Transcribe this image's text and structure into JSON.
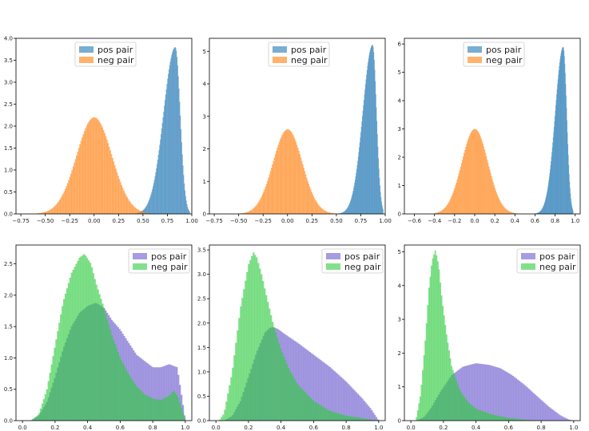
{
  "colors": {
    "pos_top": "#1f77b4",
    "neg_top": "#ff7f0e",
    "pos_bottom": "#6a5acd",
    "neg_bottom": "#2ecc40",
    "axis": "#000000"
  },
  "chart_data": [
    {
      "type": "histogram",
      "panel": "top-left",
      "xlim": [
        -0.8,
        1.0
      ],
      "ylim": [
        0,
        4.0
      ],
      "xticks": [
        -0.75,
        -0.5,
        -0.25,
        0.0,
        0.25,
        0.5,
        0.75,
        1.0
      ],
      "xtick_labels": [
        "−0.75",
        "−0.50",
        "−0.25",
        "0.00",
        "0.25",
        "0.50",
        "0.75",
        "1.00"
      ],
      "yticks": [
        0.0,
        0.5,
        1.0,
        1.5,
        2.0,
        2.5,
        3.0,
        3.5,
        4.0
      ],
      "ytick_labels": [
        "0.0",
        "0.5",
        "1.0",
        "1.5",
        "2.0",
        "2.5",
        "3.0",
        "3.5",
        "4.0"
      ],
      "legend": [
        "pos pair",
        "neg pair"
      ],
      "legend_position": "top-center",
      "series": [
        {
          "name": "pos pair",
          "color": "#1f77b4",
          "alpha": 0.6,
          "shape": "skew-left",
          "range": [
            0.3,
            0.98
          ],
          "peak_x": 0.83,
          "peak": 3.8,
          "sigma_left": 0.12,
          "sigma_right": 0.05
        },
        {
          "name": "neg pair",
          "color": "#ff7f0e",
          "alpha": 0.6,
          "shape": "gauss",
          "range": [
            -0.6,
            0.55
          ],
          "peak_x": 0.0,
          "peak": 2.2,
          "sigma": 0.18
        }
      ]
    },
    {
      "type": "histogram",
      "panel": "top-middle",
      "xlim": [
        -0.8,
        1.0
      ],
      "ylim": [
        0,
        5.4
      ],
      "xticks": [
        -0.75,
        -0.5,
        -0.25,
        0.0,
        0.25,
        0.5,
        0.75,
        1.0
      ],
      "xtick_labels": [
        "−0.75",
        "−0.50",
        "−0.25",
        "0.00",
        "0.25",
        "0.50",
        "0.75",
        "1.00"
      ],
      "yticks": [
        0,
        1,
        2,
        3,
        4,
        5
      ],
      "ytick_labels": [
        "0",
        "1",
        "2",
        "3",
        "4",
        "5"
      ],
      "legend": [
        "pos pair",
        "neg pair"
      ],
      "legend_position": "top-center",
      "series": [
        {
          "name": "pos pair",
          "color": "#1f77b4",
          "alpha": 0.6,
          "shape": "skew-left",
          "range": [
            0.45,
            0.98
          ],
          "peak_x": 0.87,
          "peak": 5.2,
          "sigma_left": 0.1,
          "sigma_right": 0.04
        },
        {
          "name": "neg pair",
          "color": "#ff7f0e",
          "alpha": 0.6,
          "shape": "gauss",
          "range": [
            -0.5,
            0.5
          ],
          "peak_x": 0.0,
          "peak": 2.6,
          "sigma": 0.15
        }
      ]
    },
    {
      "type": "histogram",
      "panel": "top-right",
      "xlim": [
        -0.7,
        1.05
      ],
      "ylim": [
        0,
        6.2
      ],
      "xticks": [
        -0.6,
        -0.4,
        -0.2,
        0.0,
        0.2,
        0.4,
        0.6,
        0.8,
        1.0
      ],
      "xtick_labels": [
        "−0.6",
        "−0.4",
        "−0.2",
        "0.0",
        "0.2",
        "0.4",
        "0.6",
        "0.8",
        "1.0"
      ],
      "yticks": [
        0,
        1,
        2,
        3,
        4,
        5,
        6
      ],
      "ytick_labels": [
        "0",
        "1",
        "2",
        "3",
        "4",
        "5",
        "6"
      ],
      "legend": [
        "pos pair",
        "neg pair"
      ],
      "legend_position": "top-center",
      "series": [
        {
          "name": "pos pair",
          "color": "#1f77b4",
          "alpha": 0.6,
          "shape": "skew-left",
          "range": [
            0.55,
            0.98
          ],
          "peak_x": 0.88,
          "peak": 5.9,
          "sigma_left": 0.08,
          "sigma_right": 0.035
        },
        {
          "name": "neg pair",
          "color": "#ff7f0e",
          "alpha": 0.6,
          "shape": "gauss",
          "range": [
            -0.4,
            0.45
          ],
          "peak_x": 0.0,
          "peak": 3.0,
          "sigma": 0.13
        }
      ]
    },
    {
      "type": "histogram",
      "panel": "bottom-left",
      "xlim": [
        -0.04,
        1.04
      ],
      "ylim": [
        0,
        2.8
      ],
      "xticks": [
        0.0,
        0.2,
        0.4,
        0.6,
        0.8,
        1.0
      ],
      "xtick_labels": [
        "0.0",
        "0.2",
        "0.4",
        "0.6",
        "0.8",
        "1.0"
      ],
      "yticks": [
        0.0,
        0.5,
        1.0,
        1.5,
        2.0,
        2.5
      ],
      "ytick_labels": [
        "0.0",
        "0.5",
        "1.0",
        "1.5",
        "2.0",
        "2.5"
      ],
      "legend": [
        "pos pair",
        "neg pair"
      ],
      "legend_position": "top-right",
      "series": [
        {
          "name": "pos pair",
          "color": "#6a5acd",
          "alpha": 0.6,
          "shape": "points",
          "x": [
            0.05,
            0.1,
            0.15,
            0.2,
            0.25,
            0.3,
            0.35,
            0.4,
            0.45,
            0.5,
            0.55,
            0.6,
            0.65,
            0.7,
            0.75,
            0.8,
            0.85,
            0.9,
            0.95,
            0.98,
            1.0
          ],
          "y": [
            0.0,
            0.08,
            0.3,
            0.7,
            1.15,
            1.5,
            1.72,
            1.83,
            1.88,
            1.8,
            1.6,
            1.45,
            1.25,
            1.05,
            0.95,
            0.85,
            0.85,
            0.9,
            0.85,
            0.35,
            0.0
          ]
        },
        {
          "name": "neg pair",
          "color": "#2ecc40",
          "alpha": 0.6,
          "shape": "points",
          "x": [
            0.05,
            0.1,
            0.15,
            0.2,
            0.25,
            0.3,
            0.35,
            0.38,
            0.42,
            0.45,
            0.5,
            0.55,
            0.6,
            0.65,
            0.7,
            0.75,
            0.8,
            0.85,
            0.9,
            0.93,
            0.96,
            1.0
          ],
          "y": [
            0.0,
            0.1,
            0.5,
            1.2,
            1.9,
            2.35,
            2.6,
            2.66,
            2.5,
            2.2,
            1.8,
            1.35,
            1.0,
            0.75,
            0.55,
            0.42,
            0.35,
            0.33,
            0.4,
            0.48,
            0.35,
            0.0
          ]
        }
      ]
    },
    {
      "type": "histogram",
      "panel": "bottom-middle",
      "xlim": [
        -0.04,
        1.04
      ],
      "ylim": [
        0,
        3.6
      ],
      "xticks": [
        0.0,
        0.2,
        0.4,
        0.6,
        0.8,
        1.0
      ],
      "xtick_labels": [
        "0.0",
        "0.2",
        "0.4",
        "0.6",
        "0.8",
        "1.0"
      ],
      "yticks": [
        0.0,
        0.5,
        1.0,
        1.5,
        2.0,
        2.5,
        3.0,
        3.5
      ],
      "ytick_labels": [
        "0.0",
        "0.5",
        "1.0",
        "1.5",
        "2.0",
        "2.5",
        "3.0",
        "3.5"
      ],
      "legend": [
        "pos pair",
        "neg pair"
      ],
      "legend_position": "top-right",
      "series": [
        {
          "name": "pos pair",
          "color": "#6a5acd",
          "alpha": 0.6,
          "shape": "points",
          "x": [
            0.05,
            0.1,
            0.15,
            0.2,
            0.25,
            0.3,
            0.33,
            0.35,
            0.38,
            0.42,
            0.5,
            0.6,
            0.7,
            0.8,
            0.9,
            0.95,
            0.98,
            1.0
          ],
          "y": [
            0.0,
            0.1,
            0.4,
            0.9,
            1.4,
            1.8,
            1.9,
            1.92,
            1.88,
            1.78,
            1.6,
            1.35,
            1.1,
            0.8,
            0.45,
            0.25,
            0.1,
            0.0
          ]
        },
        {
          "name": "neg pair",
          "color": "#2ecc40",
          "alpha": 0.6,
          "shape": "points",
          "x": [
            0.02,
            0.05,
            0.1,
            0.15,
            0.2,
            0.23,
            0.25,
            0.28,
            0.3,
            0.35,
            0.4,
            0.45,
            0.5,
            0.6,
            0.7,
            0.8,
            0.9,
            1.0
          ],
          "y": [
            0.0,
            0.15,
            1.0,
            2.3,
            3.2,
            3.45,
            3.35,
            3.0,
            2.7,
            2.0,
            1.45,
            1.05,
            0.75,
            0.4,
            0.2,
            0.1,
            0.05,
            0.0
          ]
        }
      ]
    },
    {
      "type": "histogram",
      "panel": "bottom-right",
      "xlim": [
        -0.04,
        1.04
      ],
      "ylim": [
        0,
        5.2
      ],
      "xticks": [
        0.0,
        0.2,
        0.4,
        0.6,
        0.8,
        1.0
      ],
      "xtick_labels": [
        "0.0",
        "0.2",
        "0.4",
        "0.6",
        "0.8",
        "1.0"
      ],
      "yticks": [
        0,
        1,
        2,
        3,
        4,
        5
      ],
      "ytick_labels": [
        "0",
        "1",
        "2",
        "3",
        "4",
        "5"
      ],
      "legend": [
        "pos pair",
        "neg pair"
      ],
      "legend_position": "top-right",
      "series": [
        {
          "name": "pos pair",
          "color": "#6a5acd",
          "alpha": 0.6,
          "shape": "points",
          "x": [
            0.03,
            0.08,
            0.12,
            0.18,
            0.25,
            0.32,
            0.4,
            0.48,
            0.55,
            0.62,
            0.7,
            0.78,
            0.85,
            0.92,
            0.97,
            1.0
          ],
          "y": [
            0.0,
            0.1,
            0.35,
            0.85,
            1.35,
            1.6,
            1.7,
            1.65,
            1.55,
            1.35,
            1.05,
            0.7,
            0.4,
            0.15,
            0.03,
            0.0
          ]
        },
        {
          "name": "neg pair",
          "color": "#2ecc40",
          "alpha": 0.6,
          "shape": "points",
          "x": [
            0.03,
            0.06,
            0.09,
            0.11,
            0.13,
            0.15,
            0.17,
            0.19,
            0.22,
            0.25,
            0.3,
            0.35,
            0.4,
            0.5,
            0.6,
            0.7,
            0.8
          ],
          "y": [
            0.0,
            0.8,
            2.5,
            3.9,
            4.75,
            5.05,
            4.6,
            3.6,
            2.5,
            1.6,
            0.9,
            0.55,
            0.35,
            0.18,
            0.08,
            0.03,
            0.0
          ]
        }
      ]
    }
  ]
}
